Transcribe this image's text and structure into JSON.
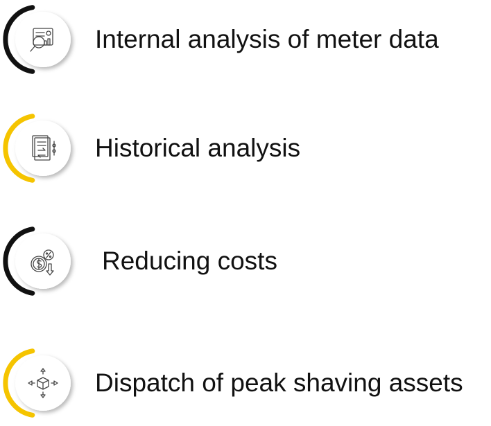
{
  "items": [
    {
      "label": "Internal analysis of meter data"
    },
    {
      "label": "Historical analysis"
    },
    {
      "label": "Reducing costs"
    },
    {
      "label": "Dispatch of peak shaving assets"
    }
  ]
}
